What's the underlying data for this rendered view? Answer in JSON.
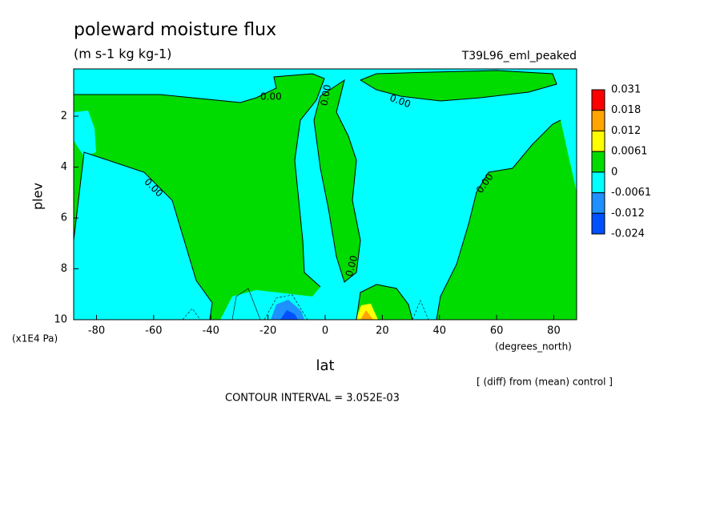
{
  "chart_data": {
    "type": "contour",
    "title": "poleward moisture flux",
    "subtitle": "(m s-1 kg kg-1)",
    "run_label": "T39L96_eml_peaked",
    "xlabel": "lat",
    "ylabel": "plev",
    "x_units": "(degrees_north)",
    "y_units": "(x1E4 Pa)",
    "note": "[ (diff) from (mean) control ]",
    "contour_interval": "CONTOUR INTERVAL = 3.052E-03",
    "contour_label": "0.00",
    "xlim": [
      -88,
      88
    ],
    "xticks": [
      -80,
      -60,
      -40,
      -20,
      0,
      20,
      40,
      60,
      80
    ],
    "ylim": [
      0.14,
      10
    ],
    "yticks": [
      2,
      4,
      6,
      8,
      10
    ],
    "levels": [
      0.031,
      0.018,
      0.012,
      0.0061,
      0,
      -0.0061,
      -0.012,
      -0.024
    ],
    "colors": [
      "#ff0000",
      "#ffa500",
      "#ffff00",
      "#00dc00",
      "#00ffff",
      "#1e90ff",
      "#0050ff"
    ]
  }
}
